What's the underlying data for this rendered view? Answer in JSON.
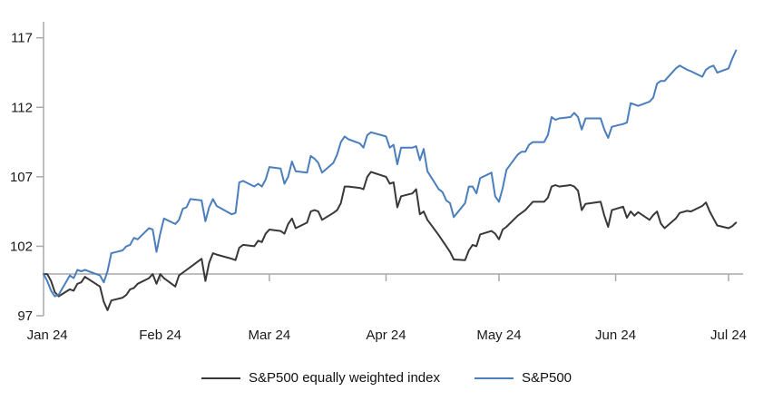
{
  "chart_data": {
    "type": "line",
    "title": "",
    "xlabel": "",
    "ylabel": "",
    "grid": false,
    "legend_position": "bottom",
    "x_axis": {
      "unit": "day-of-year 2024",
      "labels": [
        "Jan 24",
        "Feb 24",
        "Mar 24",
        "Apr 24",
        "May 24",
        "Jun 24",
        "Jul 24"
      ],
      "label_days": [
        2,
        32,
        61,
        92,
        122,
        153,
        183
      ],
      "tick_days": [
        32,
        61,
        92,
        122,
        153,
        183
      ],
      "day_range": [
        1,
        186
      ]
    },
    "y_axis": {
      "ticks": [
        97,
        102,
        107,
        112,
        117
      ],
      "range": [
        97,
        117
      ],
      "baseline": 100
    },
    "series": [
      {
        "name": "S&P500 equally weighted index",
        "color": "#383838",
        "points": [
          [
            1,
            100
          ],
          [
            2,
            100
          ],
          [
            3,
            99.5
          ],
          [
            4,
            98.7
          ],
          [
            5,
            98.4
          ],
          [
            8,
            98.9
          ],
          [
            9,
            98.8
          ],
          [
            10,
            99.3
          ],
          [
            11,
            99.4
          ],
          [
            12,
            99.8
          ],
          [
            16,
            99.1
          ],
          [
            17,
            98
          ],
          [
            18,
            97.4
          ],
          [
            19,
            98.1
          ],
          [
            22,
            98.3
          ],
          [
            23,
            98.5
          ],
          [
            24,
            98.9
          ],
          [
            25,
            99
          ],
          [
            26,
            99.3
          ],
          [
            29,
            99.7
          ],
          [
            30,
            100
          ],
          [
            31,
            99.3
          ],
          [
            32,
            100
          ],
          [
            33,
            99.7
          ],
          [
            36,
            99.1
          ],
          [
            37,
            99.9
          ],
          [
            38,
            100.1
          ],
          [
            39,
            100.3
          ],
          [
            40,
            100.5
          ],
          [
            43,
            101.1
          ],
          [
            44,
            99.5
          ],
          [
            45,
            100.8
          ],
          [
            46,
            101.5
          ],
          [
            47,
            101.4
          ],
          [
            51,
            101.1
          ],
          [
            52,
            101
          ],
          [
            53,
            101.9
          ],
          [
            54,
            102.1
          ],
          [
            57,
            102
          ],
          [
            58,
            102.4
          ],
          [
            59,
            102.3
          ],
          [
            60,
            102.9
          ],
          [
            61,
            103.2
          ],
          [
            64,
            103.1
          ],
          [
            65,
            102.9
          ],
          [
            66,
            103.6
          ],
          [
            67,
            104
          ],
          [
            68,
            103.3
          ],
          [
            71,
            103.7
          ],
          [
            72,
            104.5
          ],
          [
            73,
            104.6
          ],
          [
            74,
            104.5
          ],
          [
            75,
            103.9
          ],
          [
            78,
            104.4
          ],
          [
            79,
            104.6
          ],
          [
            80,
            105.1
          ],
          [
            81,
            106.3
          ],
          [
            82,
            106.3
          ],
          [
            85,
            106.2
          ],
          [
            86,
            106.1
          ],
          [
            87,
            107
          ],
          [
            88,
            107.35
          ],
          [
            92,
            107
          ],
          [
            93,
            106.5
          ],
          [
            94,
            106.6
          ],
          [
            95,
            104.8
          ],
          [
            96,
            105.6
          ],
          [
            99,
            105.8
          ],
          [
            100,
            106.1
          ],
          [
            101,
            104.3
          ],
          [
            102,
            104.5
          ],
          [
            103,
            103.9
          ],
          [
            106,
            102.8
          ],
          [
            107,
            102.4
          ],
          [
            108,
            102
          ],
          [
            109,
            101.6
          ],
          [
            110,
            101.05
          ],
          [
            113,
            101
          ],
          [
            114,
            101.7
          ],
          [
            115,
            102.1
          ],
          [
            116,
            102
          ],
          [
            117,
            102.85
          ],
          [
            120,
            103.1
          ],
          [
            121,
            102.9
          ],
          [
            122,
            102.5
          ],
          [
            123,
            103.2
          ],
          [
            124,
            103.4
          ],
          [
            127,
            104.2
          ],
          [
            128,
            104.4
          ],
          [
            129,
            104.6
          ],
          [
            130,
            104.9
          ],
          [
            131,
            105.2
          ],
          [
            134,
            105.2
          ],
          [
            135,
            105.5
          ],
          [
            136,
            106.3
          ],
          [
            137,
            106.4
          ],
          [
            138,
            106.3
          ],
          [
            141,
            106.4
          ],
          [
            142,
            106.3
          ],
          [
            143,
            106
          ],
          [
            144,
            104.6
          ],
          [
            145,
            105.05
          ],
          [
            149,
            105.2
          ],
          [
            150,
            104.2
          ],
          [
            151,
            103.4
          ],
          [
            152,
            104.6
          ],
          [
            155,
            104.85
          ],
          [
            156,
            104.05
          ],
          [
            157,
            104.5
          ],
          [
            158,
            104.2
          ],
          [
            159,
            104.45
          ],
          [
            162,
            103.9
          ],
          [
            163,
            104.25
          ],
          [
            164,
            104.5
          ],
          [
            165,
            103.65
          ],
          [
            166,
            103.3
          ],
          [
            169,
            104
          ],
          [
            170,
            104.4
          ],
          [
            172,
            104.55
          ],
          [
            173,
            104.5
          ],
          [
            176,
            104.9
          ],
          [
            177,
            105.15
          ],
          [
            178,
            104.5
          ],
          [
            179,
            104
          ],
          [
            180,
            103.5
          ],
          [
            183,
            103.3
          ],
          [
            184,
            103.45
          ],
          [
            185,
            103.7
          ]
        ]
      },
      {
        "name": "S&P500",
        "color": "#4a7ebc",
        "points": [
          [
            1,
            100
          ],
          [
            2,
            99.5
          ],
          [
            3,
            98.8
          ],
          [
            4,
            98.4
          ],
          [
            5,
            98.5
          ],
          [
            8,
            99.9
          ],
          [
            9,
            99.7
          ],
          [
            10,
            100.3
          ],
          [
            11,
            100.2
          ],
          [
            12,
            100.3
          ],
          [
            16,
            99.9
          ],
          [
            17,
            99.4
          ],
          [
            18,
            100.2
          ],
          [
            19,
            101.5
          ],
          [
            22,
            101.7
          ],
          [
            23,
            102
          ],
          [
            24,
            102.1
          ],
          [
            25,
            102.6
          ],
          [
            26,
            102.5
          ],
          [
            29,
            103.3
          ],
          [
            30,
            103.2
          ],
          [
            31,
            101.6
          ],
          [
            32,
            102.9
          ],
          [
            33,
            104
          ],
          [
            36,
            103.6
          ],
          [
            37,
            103.9
          ],
          [
            38,
            104.7
          ],
          [
            39,
            104.8
          ],
          [
            40,
            105.4
          ],
          [
            43,
            105.3
          ],
          [
            44,
            103.8
          ],
          [
            45,
            104.8
          ],
          [
            46,
            105.4
          ],
          [
            47,
            104.9
          ],
          [
            51,
            104.3
          ],
          [
            52,
            104.4
          ],
          [
            53,
            106.6
          ],
          [
            54,
            106.7
          ],
          [
            57,
            106.3
          ],
          [
            58,
            106.5
          ],
          [
            59,
            106.3
          ],
          [
            60,
            106.8
          ],
          [
            61,
            107.7
          ],
          [
            64,
            107.6
          ],
          [
            65,
            106.5
          ],
          [
            66,
            107
          ],
          [
            67,
            108.1
          ],
          [
            68,
            107.4
          ],
          [
            71,
            107.3
          ],
          [
            72,
            108.5
          ],
          [
            73,
            108.3
          ],
          [
            74,
            108
          ],
          [
            75,
            107.3
          ],
          [
            78,
            108
          ],
          [
            79,
            108.6
          ],
          [
            80,
            109.5
          ],
          [
            81,
            109.9
          ],
          [
            82,
            109.7
          ],
          [
            85,
            109.4
          ],
          [
            86,
            109.1
          ],
          [
            87,
            110
          ],
          [
            88,
            110.2
          ],
          [
            92,
            109.9
          ],
          [
            93,
            109.1
          ],
          [
            94,
            109.3
          ],
          [
            95,
            107.9
          ],
          [
            96,
            109.1
          ],
          [
            99,
            109.1
          ],
          [
            100,
            109.2
          ],
          [
            101,
            108.2
          ],
          [
            102,
            109
          ],
          [
            103,
            107.4
          ],
          [
            106,
            106.1
          ],
          [
            107,
            105.9
          ],
          [
            108,
            105.3
          ],
          [
            109,
            105.1
          ],
          [
            110,
            104.1
          ],
          [
            113,
            105.1
          ],
          [
            114,
            106.3
          ],
          [
            115,
            106.3
          ],
          [
            116,
            105.8
          ],
          [
            117,
            106.9
          ],
          [
            120,
            107.3
          ],
          [
            121,
            105.6
          ],
          [
            122,
            105.2
          ],
          [
            123,
            106.2
          ],
          [
            124,
            107.5
          ],
          [
            127,
            108.6
          ],
          [
            128,
            108.8
          ],
          [
            129,
            108.8
          ],
          [
            130,
            109.3
          ],
          [
            131,
            109.5
          ],
          [
            134,
            109.5
          ],
          [
            135,
            110
          ],
          [
            136,
            111.3
          ],
          [
            137,
            111.1
          ],
          [
            138,
            111.2
          ],
          [
            141,
            111.3
          ],
          [
            142,
            111.6
          ],
          [
            143,
            111.3
          ],
          [
            144,
            110.4
          ],
          [
            145,
            111.2
          ],
          [
            149,
            111.2
          ],
          [
            150,
            110.4
          ],
          [
            151,
            109.8
          ],
          [
            152,
            110.6
          ],
          [
            155,
            110.8
          ],
          [
            156,
            110.9
          ],
          [
            157,
            112.3
          ],
          [
            158,
            112.2
          ],
          [
            159,
            112.1
          ],
          [
            162,
            112.4
          ],
          [
            163,
            112.7
          ],
          [
            164,
            113.7
          ],
          [
            165,
            113.9
          ],
          [
            166,
            113.9
          ],
          [
            169,
            114.8
          ],
          [
            170,
            115
          ],
          [
            172,
            114.7
          ],
          [
            173,
            114.6
          ],
          [
            176,
            114.2
          ],
          [
            177,
            114.7
          ],
          [
            178,
            114.9
          ],
          [
            179,
            115
          ],
          [
            180,
            114.5
          ],
          [
            183,
            114.8
          ],
          [
            184,
            115.5
          ],
          [
            185,
            116.1
          ]
        ]
      }
    ]
  },
  "layout_colors": {
    "axis": "#a9a9a9",
    "text": "#1a1a1a",
    "background": "#ffffff"
  }
}
